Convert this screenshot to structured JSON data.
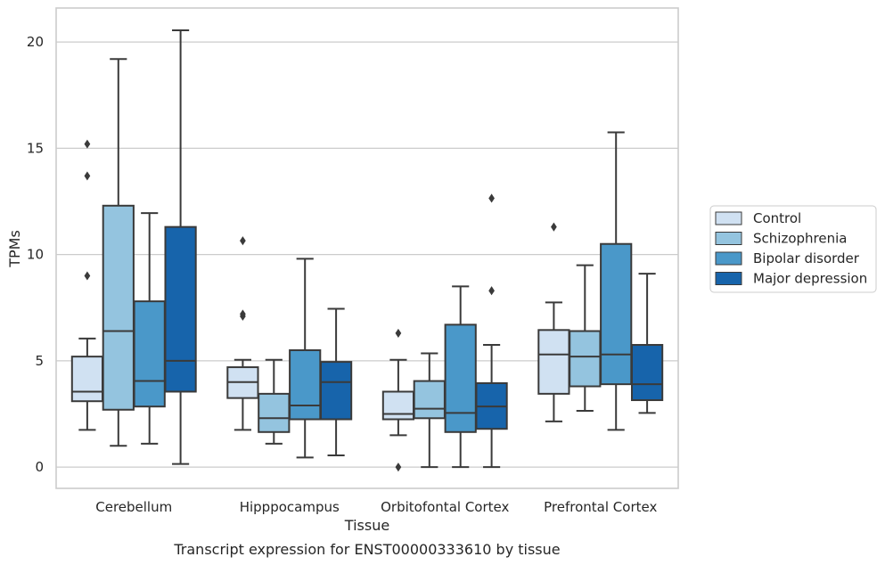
{
  "chart_data": {
    "type": "box",
    "title": "Transcript expression for ENST00000333610 by tissue",
    "xlabel": "Tissue",
    "ylabel": "TPMs",
    "ylim": [
      -1,
      21.6
    ],
    "yticks": [
      0,
      5,
      10,
      15,
      20
    ],
    "grid": true,
    "legend_position": "right",
    "categories": [
      "Cerebellum",
      "Hipppocampus",
      "Orbitofontal Cortex",
      "Prefrontal Cortex"
    ],
    "series": [
      {
        "name": "Control",
        "color": "#d0e1f2",
        "boxes": [
          {
            "whislo": 1.75,
            "q1": 3.1,
            "med": 3.55,
            "q3": 5.2,
            "whishi": 6.05,
            "fliers": [
              9.0,
              13.7,
              15.2
            ]
          },
          {
            "whislo": 1.75,
            "q1": 3.25,
            "med": 4.0,
            "q3": 4.7,
            "whishi": 5.05,
            "fliers": [
              7.1,
              7.2,
              10.65
            ]
          },
          {
            "whislo": 1.5,
            "q1": 2.25,
            "med": 2.5,
            "q3": 3.55,
            "whishi": 5.05,
            "fliers": [
              0.0,
              6.3
            ]
          },
          {
            "whislo": 2.15,
            "q1": 3.45,
            "med": 5.3,
            "q3": 6.45,
            "whishi": 7.75,
            "fliers": [
              11.3
            ]
          }
        ]
      },
      {
        "name": "Schizophrenia",
        "color": "#94c4df",
        "boxes": [
          {
            "whislo": 1.0,
            "q1": 2.7,
            "med": 6.4,
            "q3": 12.3,
            "whishi": 19.2,
            "fliers": []
          },
          {
            "whislo": 1.1,
            "q1": 1.65,
            "med": 2.3,
            "q3": 3.45,
            "whishi": 5.05,
            "fliers": []
          },
          {
            "whislo": 0.0,
            "q1": 2.3,
            "med": 2.75,
            "q3": 4.05,
            "whishi": 5.35,
            "fliers": []
          },
          {
            "whislo": 2.65,
            "q1": 3.8,
            "med": 5.2,
            "q3": 6.4,
            "whishi": 9.5,
            "fliers": []
          }
        ]
      },
      {
        "name": "Bipolar disorder",
        "color": "#4a98c9",
        "boxes": [
          {
            "whislo": 1.1,
            "q1": 2.85,
            "med": 4.05,
            "q3": 7.8,
            "whishi": 11.95,
            "fliers": []
          },
          {
            "whislo": 0.45,
            "q1": 2.25,
            "med": 2.9,
            "q3": 5.5,
            "whishi": 9.8,
            "fliers": []
          },
          {
            "whislo": 0.0,
            "q1": 1.65,
            "med": 2.55,
            "q3": 6.7,
            "whishi": 8.5,
            "fliers": []
          },
          {
            "whislo": 1.75,
            "q1": 3.9,
            "med": 5.3,
            "q3": 10.5,
            "whishi": 15.75,
            "fliers": []
          }
        ]
      },
      {
        "name": "Major depression",
        "color": "#1764ab",
        "boxes": [
          {
            "whislo": 0.15,
            "q1": 3.55,
            "med": 5.0,
            "q3": 11.3,
            "whishi": 20.55,
            "fliers": []
          },
          {
            "whislo": 0.55,
            "q1": 2.25,
            "med": 4.0,
            "q3": 4.95,
            "whishi": 7.45,
            "fliers": []
          },
          {
            "whislo": 0.0,
            "q1": 1.8,
            "med": 2.85,
            "q3": 3.95,
            "whishi": 5.75,
            "fliers": [
              8.3,
              12.65
            ]
          },
          {
            "whislo": 2.55,
            "q1": 3.15,
            "med": 3.9,
            "q3": 5.75,
            "whishi": 9.1,
            "fliers": []
          }
        ]
      }
    ]
  }
}
